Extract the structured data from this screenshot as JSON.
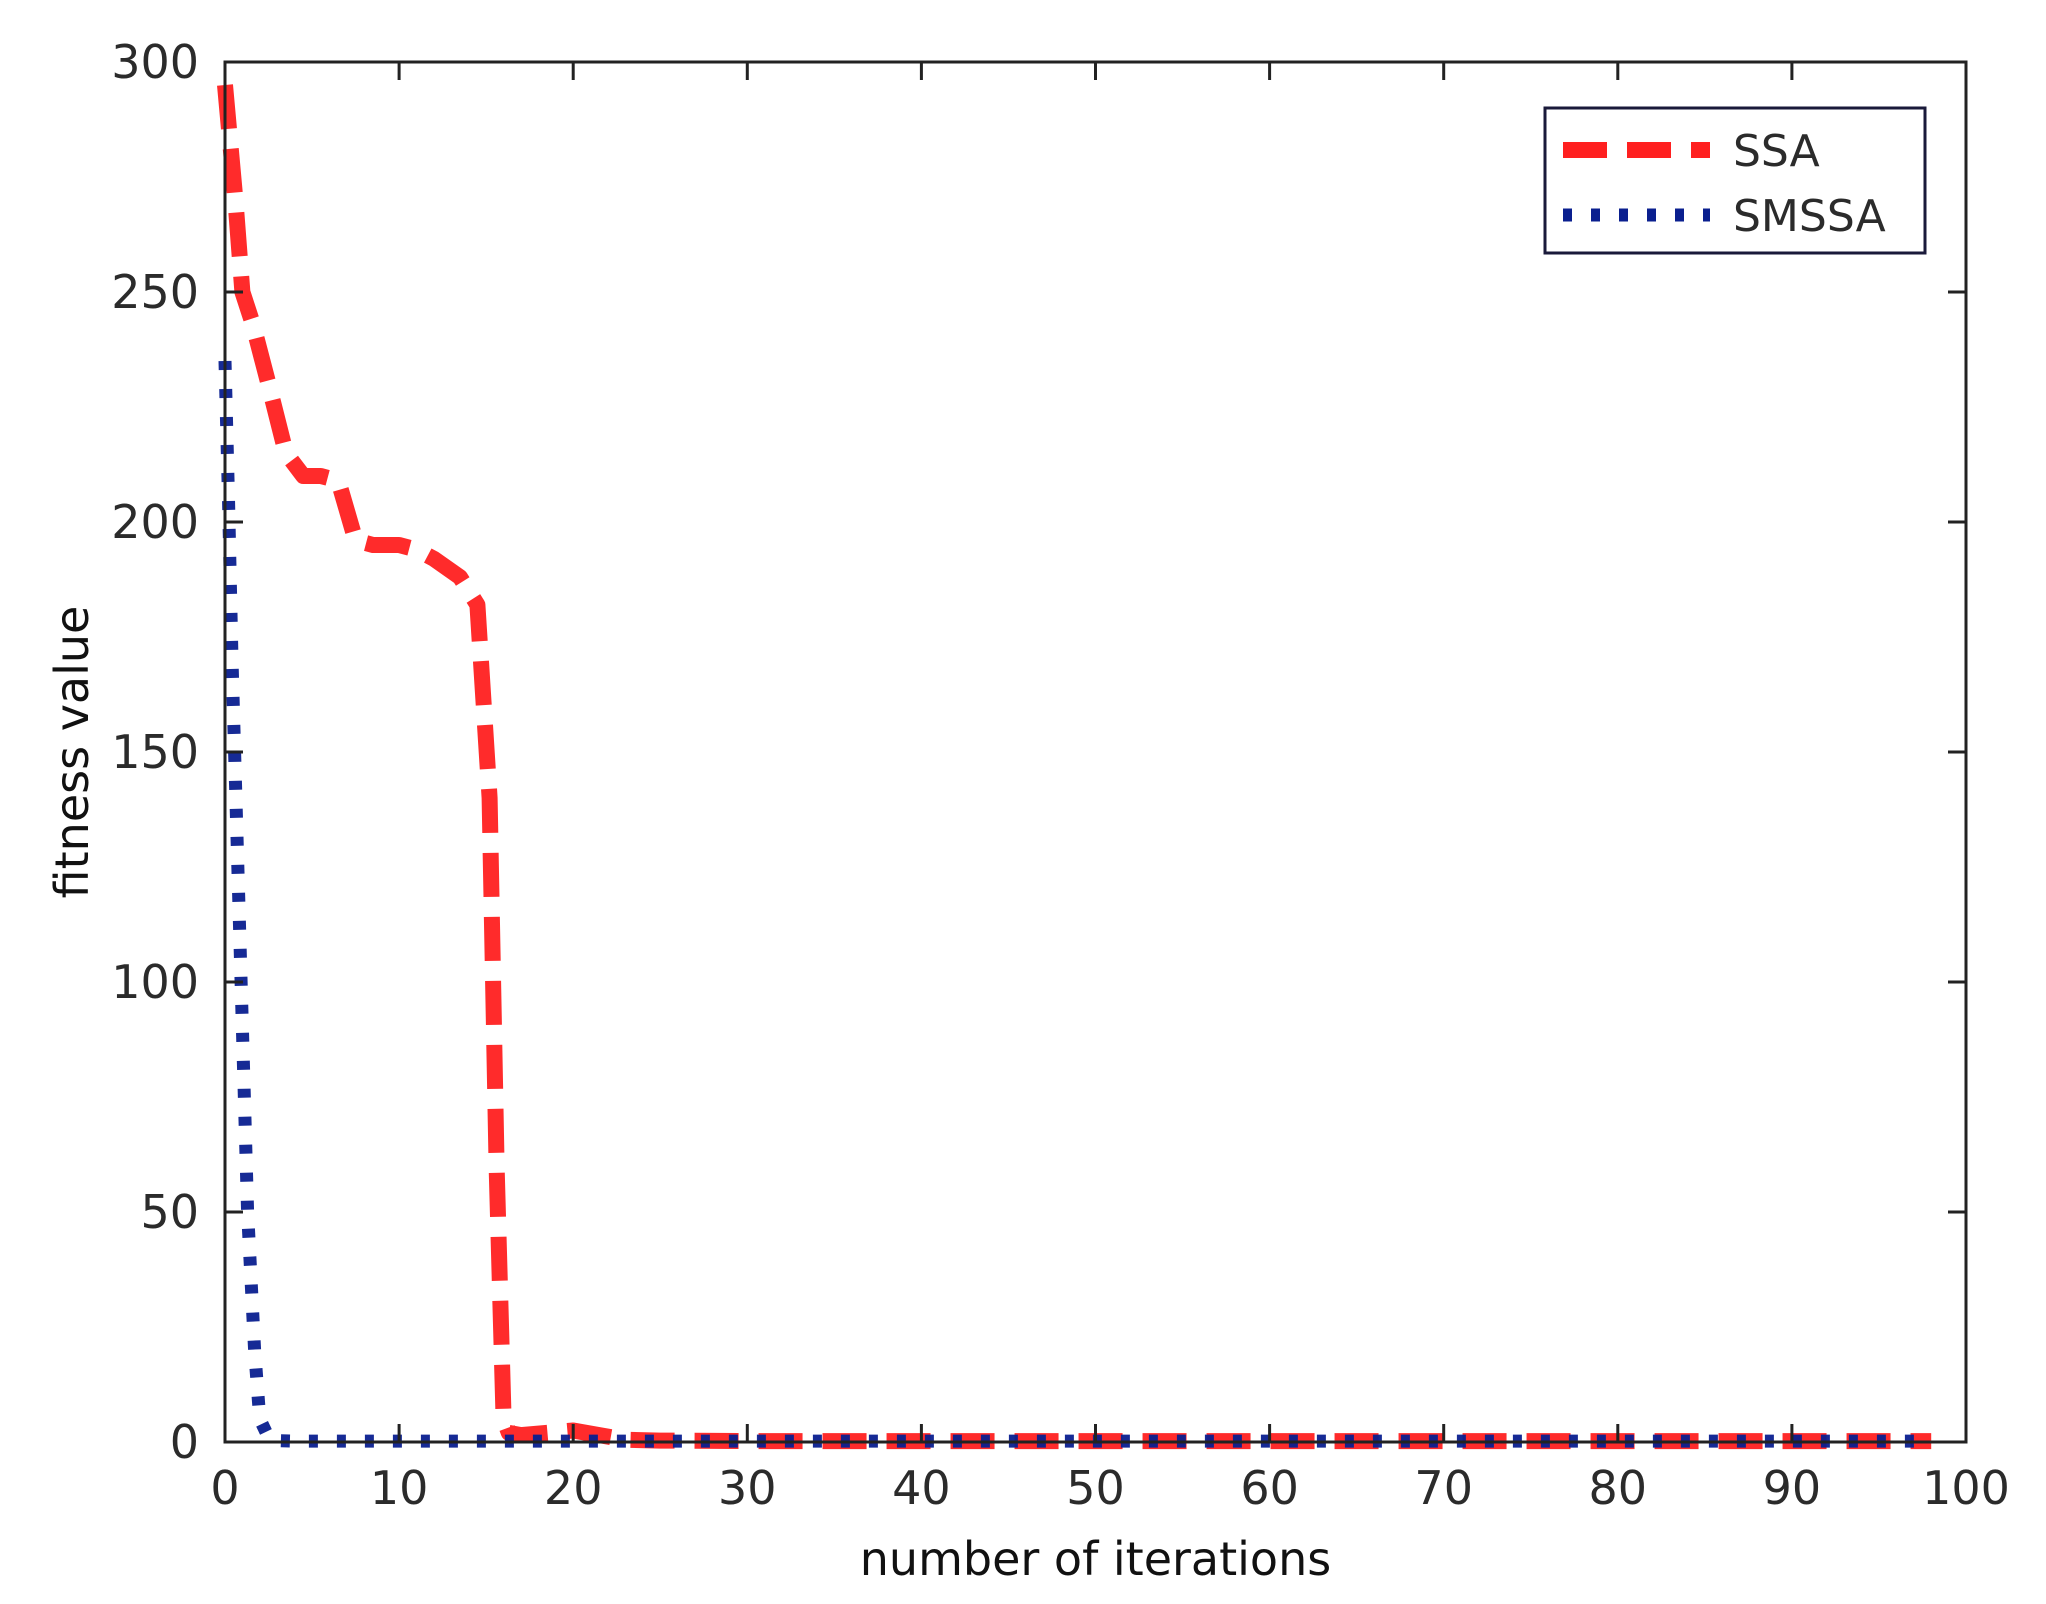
{
  "chart_data": {
    "type": "line",
    "title": "",
    "xlabel": "number of iterations",
    "ylabel": "fitness value",
    "xlim": [
      0,
      100
    ],
    "ylim": [
      0,
      300
    ],
    "xticks": [
      0,
      10,
      20,
      30,
      40,
      50,
      60,
      70,
      80,
      90,
      100
    ],
    "yticks": [
      0,
      50,
      100,
      150,
      200,
      250,
      300
    ],
    "grid": false,
    "legend_position": "top-right",
    "series": [
      {
        "name": "SSA",
        "color": "#ff2020",
        "style": "dashed",
        "x": [
          0,
          0.6,
          1,
          1.6,
          2.5,
          3.5,
          4.5,
          5.5,
          6.5,
          7.5,
          8.5,
          10,
          11,
          12,
          13.5,
          14.5,
          15.2,
          15.6,
          16,
          16.3,
          17,
          18.5,
          20,
          21.5,
          23,
          25,
          30,
          40,
          50,
          60,
          70,
          80,
          90,
          95,
          98
        ],
        "y": [
          295,
          270,
          250,
          243,
          230,
          215,
          210,
          210,
          209,
          196,
          195,
          195,
          194,
          192,
          188,
          182,
          140,
          60,
          5,
          2,
          1.5,
          2,
          2.5,
          1.5,
          0.5,
          0.3,
          0.2,
          0.2,
          0.2,
          0.2,
          0.2,
          0.2,
          0.2,
          0.2,
          0.2
        ]
      },
      {
        "name": "SMSSA",
        "color": "#0a1f8f",
        "style": "dotted",
        "x": [
          0,
          0.2,
          0.4,
          0.7,
          1,
          1.3,
          1.7,
          2,
          2.5,
          3,
          4,
          6,
          10,
          20,
          30,
          40,
          50,
          60,
          70,
          80,
          90,
          98
        ],
        "y": [
          235,
          205,
          170,
          130,
          90,
          50,
          20,
          5,
          1,
          0.3,
          0.2,
          0.2,
          0.2,
          0.2,
          0.2,
          0.2,
          0.2,
          0.2,
          0.2,
          0.2,
          0.2,
          0.2
        ]
      }
    ]
  }
}
